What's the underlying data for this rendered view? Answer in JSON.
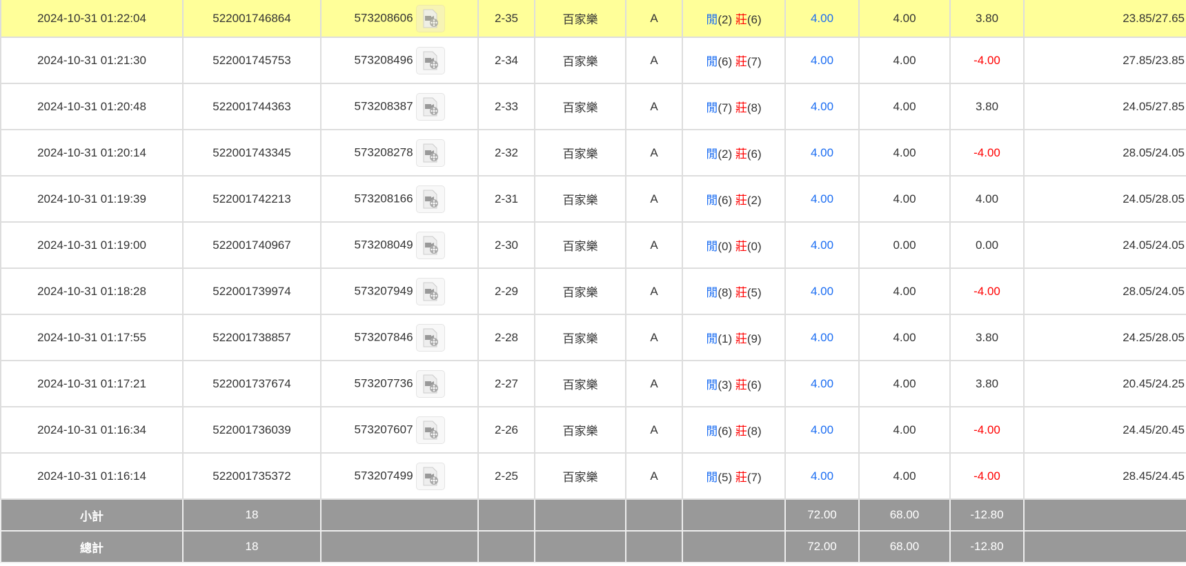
{
  "labels": {
    "player": "閒",
    "banker": "莊",
    "subtotal": "小計",
    "total": "總計"
  },
  "colors": {
    "highlight": "#ffff99",
    "blue": "#1a6cf2",
    "red": "#ff0000",
    "summary_bg": "#999999"
  },
  "rows": [
    {
      "time": "2024-10-31 01:22:04",
      "bet_id": "522001746864",
      "round": "573208606",
      "shoe": "2-35",
      "game": "百家樂",
      "table": "A",
      "p": "(2)",
      "b": "(6)",
      "bet": "4.00",
      "valid": "4.00",
      "win": "3.80",
      "balance": "23.85/27.65"
    },
    {
      "time": "2024-10-31 01:21:30",
      "bet_id": "522001745753",
      "round": "573208496",
      "shoe": "2-34",
      "game": "百家樂",
      "table": "A",
      "p": "(6)",
      "b": "(7)",
      "bet": "4.00",
      "valid": "4.00",
      "win": "-4.00",
      "balance": "27.85/23.85"
    },
    {
      "time": "2024-10-31 01:20:48",
      "bet_id": "522001744363",
      "round": "573208387",
      "shoe": "2-33",
      "game": "百家樂",
      "table": "A",
      "p": "(7)",
      "b": "(8)",
      "bet": "4.00",
      "valid": "4.00",
      "win": "3.80",
      "balance": "24.05/27.85"
    },
    {
      "time": "2024-10-31 01:20:14",
      "bet_id": "522001743345",
      "round": "573208278",
      "shoe": "2-32",
      "game": "百家樂",
      "table": "A",
      "p": "(2)",
      "b": "(6)",
      "bet": "4.00",
      "valid": "4.00",
      "win": "-4.00",
      "balance": "28.05/24.05"
    },
    {
      "time": "2024-10-31 01:19:39",
      "bet_id": "522001742213",
      "round": "573208166",
      "shoe": "2-31",
      "game": "百家樂",
      "table": "A",
      "p": "(6)",
      "b": "(2)",
      "bet": "4.00",
      "valid": "4.00",
      "win": "4.00",
      "balance": "24.05/28.05"
    },
    {
      "time": "2024-10-31 01:19:00",
      "bet_id": "522001740967",
      "round": "573208049",
      "shoe": "2-30",
      "game": "百家樂",
      "table": "A",
      "p": "(0)",
      "b": "(0)",
      "bet": "4.00",
      "valid": "0.00",
      "win": "0.00",
      "balance": "24.05/24.05"
    },
    {
      "time": "2024-10-31 01:18:28",
      "bet_id": "522001739974",
      "round": "573207949",
      "shoe": "2-29",
      "game": "百家樂",
      "table": "A",
      "p": "(8)",
      "b": "(5)",
      "bet": "4.00",
      "valid": "4.00",
      "win": "-4.00",
      "balance": "28.05/24.05"
    },
    {
      "time": "2024-10-31 01:17:55",
      "bet_id": "522001738857",
      "round": "573207846",
      "shoe": "2-28",
      "game": "百家樂",
      "table": "A",
      "p": "(1)",
      "b": "(9)",
      "bet": "4.00",
      "valid": "4.00",
      "win": "3.80",
      "balance": "24.25/28.05"
    },
    {
      "time": "2024-10-31 01:17:21",
      "bet_id": "522001737674",
      "round": "573207736",
      "shoe": "2-27",
      "game": "百家樂",
      "table": "A",
      "p": "(3)",
      "b": "(6)",
      "bet": "4.00",
      "valid": "4.00",
      "win": "3.80",
      "balance": "20.45/24.25"
    },
    {
      "time": "2024-10-31 01:16:34",
      "bet_id": "522001736039",
      "round": "573207607",
      "shoe": "2-26",
      "game": "百家樂",
      "table": "A",
      "p": "(6)",
      "b": "(8)",
      "bet": "4.00",
      "valid": "4.00",
      "win": "-4.00",
      "balance": "24.45/20.45"
    },
    {
      "time": "2024-10-31 01:16:14",
      "bet_id": "522001735372",
      "round": "573207499",
      "shoe": "2-25",
      "game": "百家樂",
      "table": "A",
      "p": "(5)",
      "b": "(7)",
      "bet": "4.00",
      "valid": "4.00",
      "win": "-4.00",
      "balance": "28.45/24.45"
    }
  ],
  "subtotal": {
    "count": "18",
    "bet": "72.00",
    "valid": "68.00",
    "win": "-12.80"
  },
  "total": {
    "count": "18",
    "bet": "72.00",
    "valid": "68.00",
    "win": "-12.80"
  }
}
